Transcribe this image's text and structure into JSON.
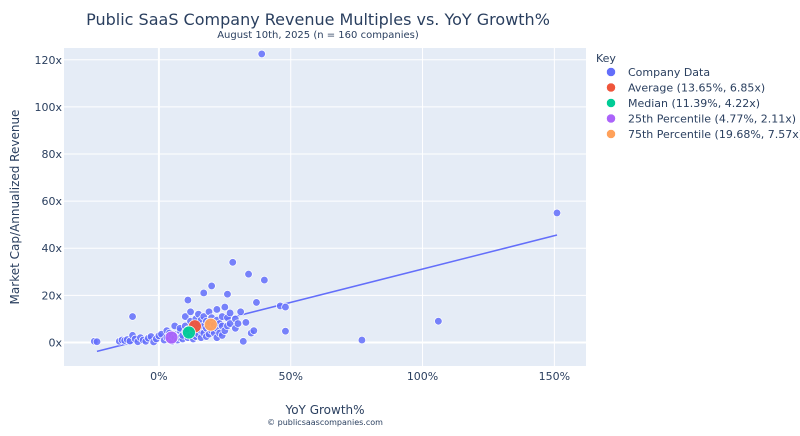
{
  "chart_data": {
    "type": "scatter",
    "title": "Public SaaS Company Revenue Multiples vs. YoY Growth%",
    "subtitle": "August 10th, 2025 (n = 160 companies)",
    "xlabel": "YoY Growth%",
    "ylabel": "Market Cap/Annualized Revenue",
    "footer": "© publicsaascompanies.com",
    "xlim": [
      -36,
      162
    ],
    "ylim": [
      -10,
      125
    ],
    "x_ticks": [
      0,
      50,
      100,
      150
    ],
    "x_tick_labels": [
      "0%",
      "50%",
      "100%",
      "150%"
    ],
    "y_ticks": [
      0,
      20,
      40,
      60,
      80,
      100,
      120
    ],
    "y_tick_labels": [
      "0x",
      "20x",
      "40x",
      "60x",
      "80x",
      "100x",
      "120x"
    ],
    "grid": true,
    "legend_title": "Key",
    "legend_position": "right",
    "trendline": {
      "color": "#636efa",
      "points": [
        [
          -23.5,
          -3.8
        ],
        [
          151,
          45.6
        ]
      ]
    },
    "series": [
      {
        "name": "Company Data",
        "color": "#636efa",
        "points": [
          [
            -24.5,
            0.5
          ],
          [
            -23.5,
            0.3
          ],
          [
            -15,
            0.5
          ],
          [
            -14,
            1.0
          ],
          [
            -13,
            0.8
          ],
          [
            -12,
            1.2
          ],
          [
            -11,
            0.6
          ],
          [
            -10,
            3.0
          ],
          [
            -10,
            11.0
          ],
          [
            -9,
            1.5
          ],
          [
            -8,
            0.3
          ],
          [
            -7,
            2.0
          ],
          [
            -6,
            1.0
          ],
          [
            -5,
            0.5
          ],
          [
            -4,
            1.8
          ],
          [
            -3,
            2.5
          ],
          [
            -2,
            0.2
          ],
          [
            -1,
            1.5
          ],
          [
            0,
            2.8
          ],
          [
            1,
            3.5
          ],
          [
            2,
            1.0
          ],
          [
            3,
            5.0
          ],
          [
            3,
            2.2
          ],
          [
            4,
            1.5
          ],
          [
            4,
            4.0
          ],
          [
            5,
            0.5
          ],
          [
            5,
            3.0
          ],
          [
            6,
            2.0
          ],
          [
            6,
            7.0
          ],
          [
            7,
            1.0
          ],
          [
            7,
            3.5
          ],
          [
            8,
            5.0
          ],
          [
            8,
            2.0
          ],
          [
            8,
            6.0
          ],
          [
            9,
            1.5
          ],
          [
            9,
            3.0
          ],
          [
            10,
            4.5
          ],
          [
            10,
            7.0
          ],
          [
            10,
            11.0
          ],
          [
            11,
            2.0
          ],
          [
            11,
            5.5
          ],
          [
            11,
            18.0
          ],
          [
            12,
            3.0
          ],
          [
            12,
            9.0
          ],
          [
            12,
            13.0
          ],
          [
            13,
            1.5
          ],
          [
            13,
            4.5
          ],
          [
            13,
            7.5
          ],
          [
            14,
            2.5
          ],
          [
            14,
            6.0
          ],
          [
            14,
            10.0
          ],
          [
            15,
            3.5
          ],
          [
            15,
            8.0
          ],
          [
            15,
            12.0
          ],
          [
            16,
            2.0
          ],
          [
            16,
            5.0
          ],
          [
            16,
            9.5
          ],
          [
            17,
            4.0
          ],
          [
            17,
            7.0
          ],
          [
            17,
            11.0
          ],
          [
            17,
            21.0
          ],
          [
            18,
            2.5
          ],
          [
            18,
            6.0
          ],
          [
            18,
            9.0
          ],
          [
            19,
            3.5
          ],
          [
            19,
            8.5
          ],
          [
            19,
            13.0
          ],
          [
            20,
            5.0
          ],
          [
            20,
            10.5
          ],
          [
            20,
            24.0
          ],
          [
            21,
            4.0
          ],
          [
            21,
            7.5
          ],
          [
            22,
            2.0
          ],
          [
            22,
            6.0
          ],
          [
            22,
            9.5
          ],
          [
            22,
            14.0
          ],
          [
            23,
            4.0
          ],
          [
            23,
            8.0
          ],
          [
            24,
            3.0
          ],
          [
            24,
            7.0
          ],
          [
            24,
            11.0
          ],
          [
            25,
            5.0
          ],
          [
            25,
            15.0
          ],
          [
            26,
            7.0
          ],
          [
            26,
            10.5
          ],
          [
            26,
            20.5
          ],
          [
            27,
            8.0
          ],
          [
            27,
            12.5
          ],
          [
            28,
            34.0
          ],
          [
            29,
            6.0
          ],
          [
            29,
            10.0
          ],
          [
            30,
            8.0
          ],
          [
            31,
            13.0
          ],
          [
            32,
            0.5
          ],
          [
            33,
            8.5
          ],
          [
            34,
            29.0
          ],
          [
            35,
            4.0
          ],
          [
            36,
            5.0
          ],
          [
            37,
            17.0
          ],
          [
            40,
            26.5
          ],
          [
            46,
            15.5
          ],
          [
            48,
            15.0
          ],
          [
            48,
            4.8
          ],
          [
            77,
            1.0
          ],
          [
            106,
            9.0
          ],
          [
            151,
            55.0
          ],
          [
            39,
            122.5
          ]
        ]
      },
      {
        "name": "Average (13.65%, 6.85x)",
        "color": "#ef553b",
        "points": [
          [
            13.65,
            6.85
          ]
        ]
      },
      {
        "name": "Median (11.39%, 4.22x)",
        "color": "#00cc96",
        "points": [
          [
            11.39,
            4.22
          ]
        ]
      },
      {
        "name": "25th Percentile (4.77%, 2.11x)",
        "color": "#ab63fa",
        "points": [
          [
            4.77,
            2.11
          ]
        ]
      },
      {
        "name": "75th Percentile (19.68%, 7.57x)",
        "color": "#ffa15a",
        "points": [
          [
            19.68,
            7.57
          ]
        ]
      }
    ]
  }
}
